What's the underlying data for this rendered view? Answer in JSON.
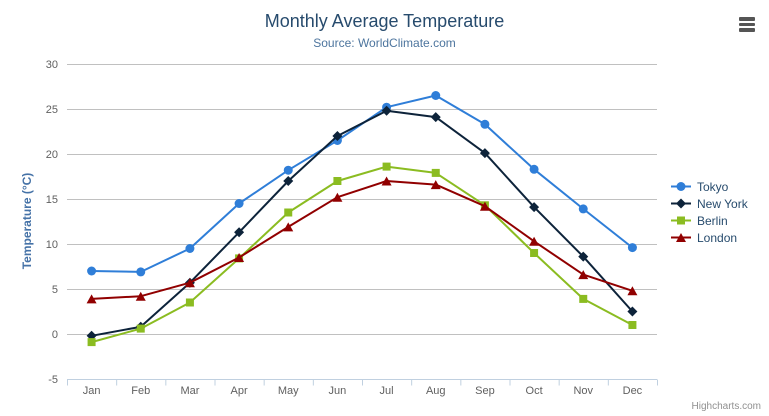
{
  "chart_data": {
    "type": "line",
    "title": "Monthly Average Temperature",
    "subtitle": "Source: WorldClimate.com",
    "ylabel": "Temperature (°C)",
    "xlabel": "",
    "categories": [
      "Jan",
      "Feb",
      "Mar",
      "Apr",
      "May",
      "Jun",
      "Jul",
      "Aug",
      "Sep",
      "Oct",
      "Nov",
      "Dec"
    ],
    "yticks": [
      30,
      25,
      20,
      15,
      10,
      5,
      0,
      -5
    ],
    "ylim": [
      -5,
      30
    ],
    "grid": true,
    "legend_position": "right",
    "series": [
      {
        "name": "Tokyo",
        "color": "#2f7ed8",
        "marker": "circle",
        "values": [
          7.0,
          6.9,
          9.5,
          14.5,
          18.2,
          21.5,
          25.2,
          26.5,
          23.3,
          18.3,
          13.9,
          9.6
        ]
      },
      {
        "name": "New York",
        "color": "#0d233a",
        "marker": "diamond",
        "values": [
          -0.2,
          0.8,
          5.7,
          11.3,
          17.0,
          22.0,
          24.8,
          24.1,
          20.1,
          14.1,
          8.6,
          2.5
        ]
      },
      {
        "name": "Berlin",
        "color": "#8bbc21",
        "marker": "square",
        "values": [
          -0.9,
          0.6,
          3.5,
          8.4,
          13.5,
          17.0,
          18.6,
          17.9,
          14.3,
          9.0,
          3.9,
          1.0
        ]
      },
      {
        "name": "London",
        "color": "#910000",
        "marker": "triangle",
        "values": [
          3.9,
          4.2,
          5.7,
          8.5,
          11.9,
          15.2,
          17.0,
          16.6,
          14.2,
          10.3,
          6.6,
          4.8
        ]
      }
    ],
    "credits": "Highcharts.com"
  },
  "style": {
    "title_color": "#274b6d",
    "subtitle_color": "#4d759e",
    "yaxis_title_color": "#4572a7",
    "axis_label_color": "#606060",
    "grid_color": "#c0c0c0",
    "axis_line_color": "#c0d0e0",
    "legend_text_color": "#274b6d",
    "credits_color": "#909090"
  }
}
